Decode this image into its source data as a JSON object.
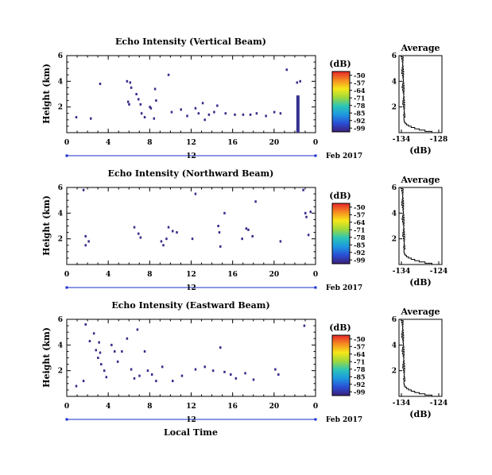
{
  "colorbar": {
    "unit": "(dB)",
    "ticks": [
      "-50",
      "-57",
      "-64",
      "-71",
      "-78",
      "-85",
      "-92",
      "-99"
    ],
    "colors": [
      "#e6262a",
      "#f58a21",
      "#f6e71a",
      "#9fd93a",
      "#2cc6b7",
      "#1e98e0",
      "#2a4fd6",
      "#3b1f7a"
    ]
  },
  "date_label": "Feb 2017",
  "day_label": "12",
  "x_axis_label": "Local Time",
  "chart_data": [
    {
      "type": "heatmap",
      "title": "Echo Intensity (Vertical Beam)",
      "ylabel": "Height (km)",
      "xlim": [
        0,
        24
      ],
      "ylim": [
        0,
        6
      ],
      "xticks": [
        "0",
        "4",
        "8",
        "12",
        "16",
        "20",
        "0"
      ],
      "yticks": [
        "2",
        "4",
        "6"
      ],
      "cells": [
        [
          0.9,
          1.2
        ],
        [
          2.3,
          1.1
        ],
        [
          3.2,
          3.8
        ],
        [
          5.8,
          4.0
        ],
        [
          6.1,
          3.9
        ],
        [
          6.2,
          3.5
        ],
        [
          5.9,
          2.4
        ],
        [
          6.0,
          2.2
        ],
        [
          6.7,
          3.0
        ],
        [
          6.9,
          2.6
        ],
        [
          7.1,
          2.2
        ],
        [
          7.2,
          1.5
        ],
        [
          7.5,
          1.2
        ],
        [
          8.0,
          2.0
        ],
        [
          8.1,
          1.9
        ],
        [
          8.4,
          1.1
        ],
        [
          8.6,
          2.5
        ],
        [
          8.5,
          3.4
        ],
        [
          9.8,
          4.5
        ],
        [
          10.1,
          1.6
        ],
        [
          11.0,
          1.8
        ],
        [
          11.6,
          1.3
        ],
        [
          12.4,
          1.9
        ],
        [
          12.7,
          1.5
        ],
        [
          13.1,
          2.3
        ],
        [
          13.3,
          1.0
        ],
        [
          13.7,
          1.4
        ],
        [
          14.2,
          1.6
        ],
        [
          14.5,
          2.1
        ],
        [
          15.3,
          1.5
        ],
        [
          16.2,
          1.4
        ],
        [
          17.0,
          1.4
        ],
        [
          17.7,
          1.4
        ],
        [
          18.3,
          1.5
        ],
        [
          19.2,
          1.3
        ],
        [
          20.0,
          1.6
        ],
        [
          20.6,
          1.5
        ],
        [
          21.2,
          4.9
        ],
        [
          22.2,
          3.9
        ],
        [
          22.5,
          4.0
        ]
      ],
      "column": {
        "x": 22.3,
        "y0": 0,
        "y1": 2.9
      },
      "average": {
        "title": "Average",
        "xlabel": "(dB)",
        "xticks": [
          "-134",
          "-128"
        ],
        "yticks": [
          "2",
          "4",
          "6"
        ]
      }
    },
    {
      "type": "heatmap",
      "title": "Echo Intensity (Northward Beam)",
      "ylabel": "Height (km)",
      "xlim": [
        0,
        24
      ],
      "ylim": [
        0,
        6
      ],
      "xticks": [
        "0",
        "4",
        "8",
        "12",
        "16",
        "20",
        "0"
      ],
      "yticks": [
        "2",
        "4",
        "6"
      ],
      "cells": [
        [
          1.6,
          5.8
        ],
        [
          1.8,
          2.2
        ],
        [
          1.8,
          1.5
        ],
        [
          2.1,
          1.8
        ],
        [
          6.5,
          2.9
        ],
        [
          6.9,
          2.4
        ],
        [
          7.1,
          2.1
        ],
        [
          9.1,
          1.8
        ],
        [
          9.3,
          1.5
        ],
        [
          9.6,
          2.0
        ],
        [
          9.8,
          2.9
        ],
        [
          10.2,
          2.6
        ],
        [
          10.6,
          2.5
        ],
        [
          12.1,
          2.0
        ],
        [
          12.4,
          5.5
        ],
        [
          14.6,
          3.0
        ],
        [
          14.7,
          2.5
        ],
        [
          14.8,
          1.4
        ],
        [
          15.2,
          4.0
        ],
        [
          16.9,
          2.0
        ],
        [
          17.3,
          2.8
        ],
        [
          17.5,
          2.7
        ],
        [
          17.9,
          2.2
        ],
        [
          18.2,
          4.9
        ],
        [
          20.6,
          1.8
        ],
        [
          22.8,
          5.8
        ],
        [
          23.0,
          4.0
        ],
        [
          23.1,
          3.7
        ],
        [
          23.5,
          4.1
        ],
        [
          23.3,
          2.3
        ]
      ],
      "column": null,
      "average": {
        "title": "Average",
        "xlabel": "(dB)",
        "xticks": [
          "-134",
          "-124"
        ],
        "yticks": [
          "2",
          "4",
          "6"
        ]
      }
    },
    {
      "type": "heatmap",
      "title": "Echo Intensity (Eastward Beam)",
      "ylabel": "Height (km)",
      "xlim": [
        0,
        24
      ],
      "ylim": [
        0,
        6
      ],
      "xticks": [
        "0",
        "4",
        "8",
        "12",
        "16",
        "20",
        "0"
      ],
      "yticks": [
        "2",
        "4",
        "6"
      ],
      "cells": [
        [
          0.9,
          0.8
        ],
        [
          1.6,
          1.2
        ],
        [
          1.8,
          5.6
        ],
        [
          2.2,
          4.3
        ],
        [
          2.6,
          4.9
        ],
        [
          2.8,
          3.6
        ],
        [
          3.1,
          4.2
        ],
        [
          3.2,
          3.4
        ],
        [
          3.0,
          3.0
        ],
        [
          3.3,
          2.5
        ],
        [
          3.6,
          2.0
        ],
        [
          3.8,
          1.5
        ],
        [
          4.3,
          4.0
        ],
        [
          4.6,
          3.5
        ],
        [
          4.9,
          2.7
        ],
        [
          5.3,
          3.5
        ],
        [
          5.8,
          4.5
        ],
        [
          6.2,
          2.1
        ],
        [
          6.5,
          1.4
        ],
        [
          6.8,
          5.2
        ],
        [
          7.0,
          1.6
        ],
        [
          7.5,
          3.5
        ],
        [
          7.8,
          2.0
        ],
        [
          8.2,
          1.7
        ],
        [
          8.6,
          1.2
        ],
        [
          9.2,
          2.3
        ],
        [
          10.2,
          1.2
        ],
        [
          11.1,
          1.6
        ],
        [
          12.4,
          2.1
        ],
        [
          13.3,
          2.3
        ],
        [
          14.1,
          2.0
        ],
        [
          14.8,
          3.8
        ],
        [
          15.2,
          1.9
        ],
        [
          15.8,
          1.7
        ],
        [
          16.3,
          1.4
        ],
        [
          17.2,
          1.8
        ],
        [
          18.0,
          1.3
        ],
        [
          20.1,
          2.1
        ],
        [
          20.4,
          1.7
        ],
        [
          22.9,
          5.5
        ]
      ],
      "column": null,
      "average": {
        "title": "Average",
        "xlabel": "(dB)",
        "xticks": [
          "-134",
          "-124"
        ],
        "yticks": [
          "2",
          "4",
          "6"
        ]
      }
    }
  ]
}
